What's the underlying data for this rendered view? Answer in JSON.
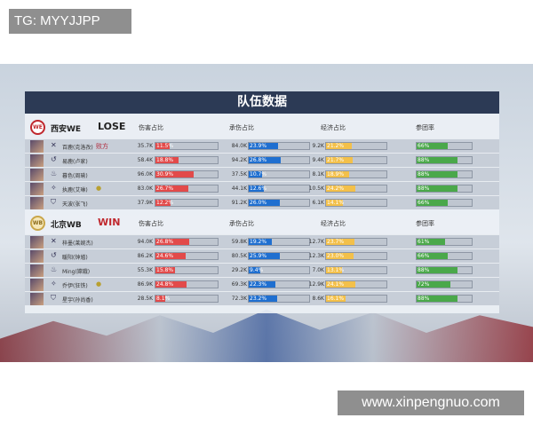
{
  "overlay_label": "TG: MYYJJPP",
  "watermark": "www.xinpengnuo.com",
  "panel_title": "队伍数据",
  "columns": [
    "伤害占比",
    "承伤占比",
    "经济占比",
    "参团率"
  ],
  "colors": {
    "damage": "#e24a4a",
    "tank": "#1f6fd0",
    "gold": "#f3c04a",
    "participation": "#4aa84a",
    "lose": "#222222",
    "win": "#c0282e"
  },
  "teams": [
    {
      "logo": "WE",
      "name": "西安WE",
      "result": "LOSE",
      "players": [
        {
          "name": "百鹿(克洛孜)",
          "role_icon": "swords-icon",
          "badge": "mvp-lose-badge",
          "badge_text": "败方",
          "dmg": "35.7K",
          "dmg_pct": "11.5%",
          "tank": "84.0K",
          "tank_pct": "23.9%",
          "gold": "9.2K",
          "gold_pct": "21.2%",
          "part": "66%"
        },
        {
          "name": "易鹿(卢家)",
          "role_icon": "swirl-icon",
          "dmg": "58.4K",
          "dmg_pct": "18.8%",
          "tank": "94.2K",
          "tank_pct": "26.8%",
          "gold": "9.4K",
          "gold_pct": "21.7%",
          "part": "88%"
        },
        {
          "name": "暮色(周瑜)",
          "role_icon": "flame-icon",
          "dmg": "96.0K",
          "dmg_pct": "30.9%",
          "tank": "37.5K",
          "tank_pct": "10.7%",
          "gold": "8.1K",
          "gold_pct": "18.9%",
          "part": "88%"
        },
        {
          "name": "执鹿(艾琳)",
          "role_icon": "arrow-icon",
          "badge": "coin-badge",
          "badge_text": "●",
          "dmg": "83.0K",
          "dmg_pct": "26.7%",
          "tank": "44.1K",
          "tank_pct": "12.6%",
          "gold": "10.5K",
          "gold_pct": "24.2%",
          "part": "88%"
        },
        {
          "name": "天波(张飞)",
          "role_icon": "shield-icon",
          "dmg": "37.9K",
          "dmg_pct": "12.2%",
          "tank": "91.2K",
          "tank_pct": "26.0%",
          "gold": "6.1K",
          "gold_pct": "14.1%",
          "part": "66%"
        }
      ]
    },
    {
      "logo": "WB",
      "name": "北京WB",
      "result": "WIN",
      "players": [
        {
          "name": "梓墨(莱婉杰)",
          "role_icon": "swords-icon",
          "dmg": "94.0K",
          "dmg_pct": "26.8%",
          "tank": "59.8K",
          "tank_pct": "19.2%",
          "gold": "12.7K",
          "gold_pct": "23.7%",
          "part": "61%"
        },
        {
          "name": "暖阳(钟馗)",
          "role_icon": "swirl-icon",
          "dmg": "86.2K",
          "dmg_pct": "24.6%",
          "tank": "80.5K",
          "tank_pct": "25.9%",
          "gold": "12.3K",
          "gold_pct": "23.0%",
          "part": "66%"
        },
        {
          "name": "Ming(嫦娥)",
          "role_icon": "flame-icon",
          "dmg": "55.3K",
          "dmg_pct": "15.8%",
          "tank": "29.2K",
          "tank_pct": "9.4%",
          "gold": "7.0K",
          "gold_pct": "13.1%",
          "part": "88%"
        },
        {
          "name": "乔伊(狂铁)",
          "role_icon": "arrow-icon",
          "badge": "mvp-win-badge",
          "badge_text": "●",
          "dmg": "86.9K",
          "dmg_pct": "24.8%",
          "tank": "69.3K",
          "tank_pct": "22.3%",
          "gold": "12.9K",
          "gold_pct": "24.1%",
          "part": "72%"
        },
        {
          "name": "星宇(孙尚香)",
          "role_icon": "shield-icon",
          "dmg": "28.5K",
          "dmg_pct": "8.1%",
          "tank": "72.3K",
          "tank_pct": "23.2%",
          "gold": "8.6K",
          "gold_pct": "16.1%",
          "part": "88%"
        }
      ]
    }
  ]
}
